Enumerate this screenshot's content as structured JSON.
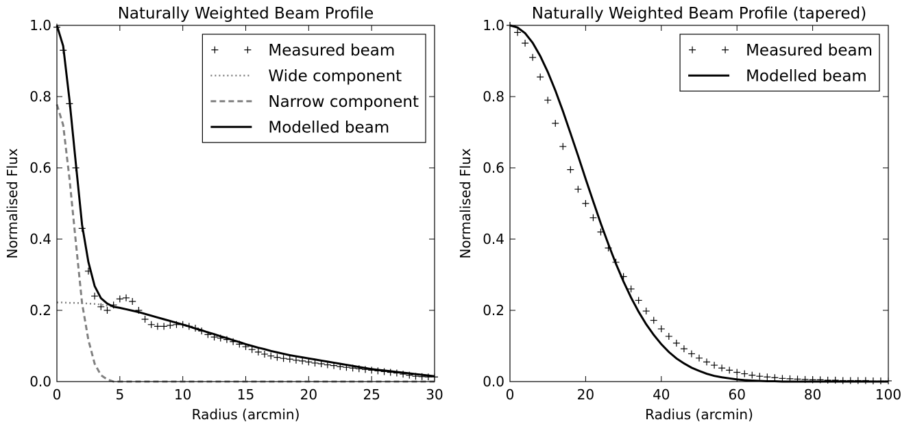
{
  "chart_data": [
    {
      "type": "line",
      "title": "Naturally Weighted Beam Profile",
      "x_label": "Radius (arcmin)",
      "y_label": "Normalised Flux",
      "xlim": [
        0,
        30
      ],
      "ylim": [
        0,
        1
      ],
      "xticks": [
        0,
        5,
        10,
        15,
        20,
        25,
        30
      ],
      "yticks": [
        {
          "value": 0,
          "label": "0.0"
        },
        0.2,
        0.4,
        0.6,
        0.8,
        {
          "value": 1,
          "label": "1.0"
        }
      ],
      "legend": "upper right",
      "x": [
        0,
        0.5,
        1,
        1.5,
        2,
        2.5,
        3,
        3.5,
        4,
        4.5,
        5,
        5.5,
        6,
        6.5,
        7,
        7.5,
        8,
        8.5,
        9,
        9.5,
        10,
        10.5,
        11,
        11.5,
        12,
        12.5,
        13,
        13.5,
        14,
        14.5,
        15,
        15.5,
        16,
        16.5,
        17,
        17.5,
        18,
        18.5,
        19,
        19.5,
        20,
        20.5,
        21,
        21.5,
        22,
        22.5,
        23,
        23.5,
        24,
        24.5,
        25,
        25.5,
        26,
        26.5,
        27,
        27.5,
        28,
        28.5,
        29,
        29.5,
        30
      ],
      "series": [
        {
          "name": "Measured beam",
          "color": "#000000",
          "marker": "+",
          "linestyle": "none",
          "values": [
            0.995,
            0.93,
            0.78,
            0.6,
            0.43,
            0.31,
            0.24,
            0.21,
            0.2,
            0.215,
            0.232,
            0.235,
            0.225,
            0.2,
            0.175,
            0.16,
            0.155,
            0.155,
            0.158,
            0.16,
            0.16,
            0.155,
            0.15,
            0.142,
            0.132,
            0.125,
            0.122,
            0.118,
            0.112,
            0.105,
            0.098,
            0.09,
            0.083,
            0.077,
            0.072,
            0.068,
            0.065,
            0.063,
            0.06,
            0.058,
            0.055,
            0.052,
            0.05,
            0.047,
            0.045,
            0.042,
            0.04,
            0.038,
            0.036,
            0.034,
            0.032,
            0.03,
            0.028,
            0.026,
            0.024,
            0.021,
            0.018,
            0.015,
            0.014,
            0.013,
            0.013
          ]
        },
        {
          "name": "Wide component",
          "color": "#808080",
          "linestyle": "dotted",
          "values": [
            0.222,
            0.222,
            0.221,
            0.221,
            0.22,
            0.219,
            0.218,
            0.216,
            0.213,
            0.21,
            0.207,
            0.203,
            0.199,
            0.195,
            0.19,
            0.185,
            0.18,
            0.175,
            0.17,
            0.165,
            0.16,
            0.155,
            0.149,
            0.144,
            0.138,
            0.133,
            0.127,
            0.122,
            0.116,
            0.111,
            0.105,
            0.1,
            0.095,
            0.091,
            0.086,
            0.082,
            0.078,
            0.074,
            0.071,
            0.068,
            0.065,
            0.062,
            0.059,
            0.056,
            0.053,
            0.05,
            0.047,
            0.044,
            0.041,
            0.038,
            0.035,
            0.033,
            0.031,
            0.029,
            0.027,
            0.025,
            0.023,
            0.021,
            0.019,
            0.017,
            0.015
          ]
        },
        {
          "name": "Narrow component",
          "color": "#808080",
          "linestyle": "dashed",
          "values": [
            0.778,
            0.72,
            0.57,
            0.393,
            0.22,
            0.117,
            0.05,
            0.018,
            0.006,
            0,
            0,
            0,
            0,
            0,
            0,
            0,
            0,
            0,
            0,
            0,
            0,
            0,
            0,
            0,
            0,
            0,
            0,
            0,
            0,
            0,
            0,
            0,
            0,
            0,
            0,
            0,
            0,
            0,
            0,
            0,
            0,
            0,
            0,
            0,
            0,
            0,
            0,
            0,
            0,
            0,
            0,
            0,
            0,
            0,
            0,
            0,
            0,
            0,
            0,
            0,
            0
          ]
        },
        {
          "name": "Modelled beam",
          "color": "#000000",
          "linestyle": "solid",
          "values": [
            1.0,
            0.942,
            0.791,
            0.614,
            0.44,
            0.336,
            0.268,
            0.234,
            0.219,
            0.21,
            0.207,
            0.203,
            0.199,
            0.195,
            0.19,
            0.185,
            0.18,
            0.175,
            0.17,
            0.165,
            0.16,
            0.155,
            0.149,
            0.144,
            0.138,
            0.133,
            0.127,
            0.122,
            0.116,
            0.111,
            0.105,
            0.1,
            0.095,
            0.091,
            0.086,
            0.082,
            0.078,
            0.074,
            0.071,
            0.068,
            0.065,
            0.062,
            0.059,
            0.056,
            0.053,
            0.05,
            0.047,
            0.044,
            0.041,
            0.038,
            0.035,
            0.033,
            0.031,
            0.029,
            0.027,
            0.025,
            0.023,
            0.021,
            0.019,
            0.017,
            0.015
          ]
        }
      ]
    },
    {
      "type": "line",
      "title": "Naturally Weighted Beam Profile (tapered)",
      "x_label": "Radius (arcmin)",
      "y_label": "Normalised Flux",
      "xlim": [
        0,
        100
      ],
      "ylim": [
        0,
        1
      ],
      "xticks": [
        0,
        20,
        40,
        60,
        80,
        100
      ],
      "yticks": [
        {
          "value": 0,
          "label": "0.0"
        },
        0.2,
        0.4,
        0.6,
        0.8,
        {
          "value": 1,
          "label": "1.0"
        }
      ],
      "legend": "upper right",
      "x": [
        0,
        2,
        4,
        6,
        8,
        10,
        12,
        14,
        16,
        18,
        20,
        22,
        24,
        26,
        28,
        30,
        32,
        34,
        36,
        38,
        40,
        42,
        44,
        46,
        48,
        50,
        52,
        54,
        56,
        58,
        60,
        62,
        64,
        66,
        68,
        70,
        72,
        74,
        76,
        78,
        80,
        82,
        84,
        86,
        88,
        90,
        92,
        94,
        96,
        98,
        100
      ],
      "series": [
        {
          "name": "Measured beam",
          "color": "#000000",
          "marker": "+",
          "linestyle": "none",
          "values": [
            1.0,
            0.98,
            0.95,
            0.91,
            0.855,
            0.79,
            0.725,
            0.66,
            0.595,
            0.54,
            0.5,
            0.46,
            0.42,
            0.375,
            0.335,
            0.295,
            0.26,
            0.228,
            0.198,
            0.172,
            0.148,
            0.127,
            0.108,
            0.092,
            0.078,
            0.066,
            0.055,
            0.046,
            0.038,
            0.032,
            0.026,
            0.022,
            0.018,
            0.015,
            0.013,
            0.011,
            0.009,
            0.008,
            0.007,
            0.006,
            0.005,
            0.005,
            0.004,
            0.004,
            0.003,
            0.003,
            0.003,
            0.003,
            0.002,
            0.002,
            0.002
          ]
        },
        {
          "name": "Modelled beam",
          "color": "#000000",
          "linestyle": "solid",
          "values": [
            1.0,
            0.994,
            0.978,
            0.951,
            0.914,
            0.869,
            0.817,
            0.759,
            0.697,
            0.634,
            0.569,
            0.506,
            0.444,
            0.386,
            0.331,
            0.281,
            0.236,
            0.196,
            0.161,
            0.131,
            0.105,
            0.083,
            0.065,
            0.051,
            0.039,
            0.03,
            0.022,
            0.016,
            0.012,
            0.009,
            0.006,
            0.004,
            0.003,
            0.002,
            0.001,
            0.001,
            0,
            0,
            0,
            0,
            0,
            0,
            0,
            0,
            0,
            0,
            0,
            0,
            0,
            0,
            0
          ]
        }
      ]
    }
  ]
}
